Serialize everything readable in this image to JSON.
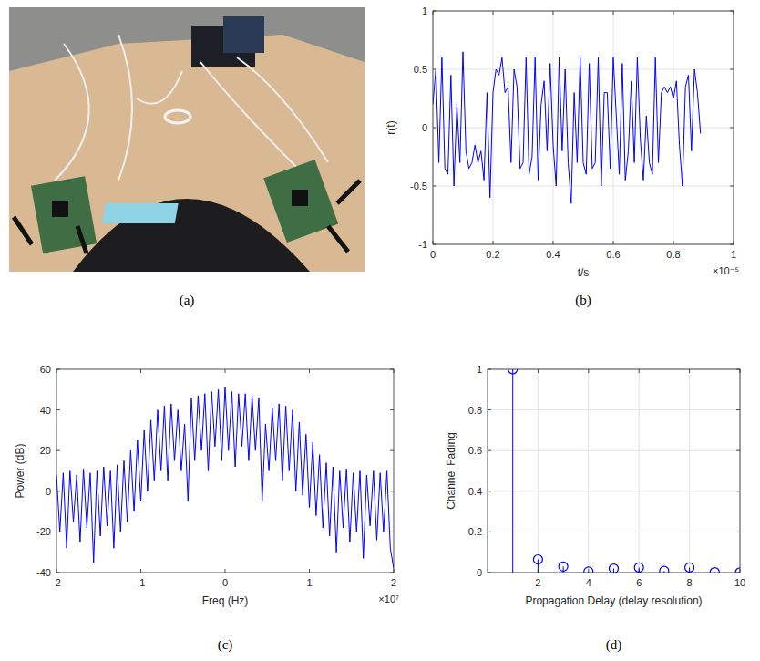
{
  "photo": {
    "caption": "(a)"
  },
  "chart_data": [
    {
      "type": "line",
      "caption": "(b)",
      "x_label": "t/s",
      "y_label": "r(t)",
      "annotations": [
        "×10⁻⁵"
      ],
      "xlim": [
        0,
        1
      ],
      "ylim": [
        -1,
        1
      ],
      "xticks": [
        0,
        0.2,
        0.4,
        0.6,
        0.8,
        1
      ],
      "yticks": [
        -1,
        -0.5,
        0,
        0.5,
        1
      ],
      "grid": true,
      "x": [
        0,
        0.01,
        0.02,
        0.03,
        0.04,
        0.05,
        0.06,
        0.07,
        0.08,
        0.09,
        0.1,
        0.11,
        0.12,
        0.13,
        0.14,
        0.15,
        0.16,
        0.17,
        0.18,
        0.19,
        0.2,
        0.21,
        0.22,
        0.23,
        0.24,
        0.25,
        0.26,
        0.27,
        0.28,
        0.29,
        0.3,
        0.31,
        0.32,
        0.33,
        0.34,
        0.35,
        0.36,
        0.37,
        0.38,
        0.39,
        0.4,
        0.41,
        0.42,
        0.43,
        0.44,
        0.45,
        0.46,
        0.47,
        0.48,
        0.49,
        0.5,
        0.51,
        0.52,
        0.53,
        0.54,
        0.55,
        0.56,
        0.57,
        0.58,
        0.59,
        0.6,
        0.61,
        0.62,
        0.63,
        0.64,
        0.65,
        0.66,
        0.67,
        0.68,
        0.69,
        0.7,
        0.71,
        0.72,
        0.73,
        0.74,
        0.75,
        0.76,
        0.77,
        0.78,
        0.79,
        0.8,
        0.81,
        0.82,
        0.83,
        0.84,
        0.85,
        0.86,
        0.87,
        0.88,
        0.89
      ],
      "series": [
        {
          "color": "#0000ff",
          "values": [
            0.2,
            0.5,
            -0.3,
            0.6,
            -0.35,
            -0.4,
            0.45,
            -0.5,
            0.2,
            -0.3,
            0.65,
            -0.2,
            -0.35,
            -0.3,
            -0.15,
            -0.3,
            -0.2,
            -0.45,
            0.3,
            -0.6,
            0.3,
            0.5,
            0.45,
            0.6,
            0.3,
            0.35,
            -0.3,
            0.5,
            0.35,
            -0.35,
            -0.3,
            0.6,
            -0.4,
            -0.25,
            0.6,
            -0.45,
            0.2,
            0.4,
            -0.2,
            0.55,
            -0.15,
            -0.5,
            0.6,
            -0.2,
            0.5,
            -0.3,
            -0.65,
            0.3,
            -0.3,
            0.6,
            -0.3,
            -0.4,
            0.55,
            -0.35,
            -0.3,
            0.6,
            -0.5,
            0.3,
            0.3,
            -0.35,
            0.6,
            0.1,
            -0.4,
            0.55,
            -0.45,
            -0.2,
            0.4,
            -0.3,
            0.6,
            -0.1,
            -0.45,
            0.1,
            -0.3,
            -0.4,
            0.6,
            -0.3,
            0.3,
            0.35,
            0.3,
            0.35,
            0.25,
            0.4,
            -0.15,
            -0.5,
            0.35,
            0.45,
            -0.2,
            0.5,
            0.3,
            -0.05
          ]
        }
      ]
    },
    {
      "type": "line",
      "caption": "(c)",
      "x_label": "Freq (Hz)",
      "y_label": "Power (dB)",
      "annotations": [
        "×10⁷"
      ],
      "xlim": [
        -2,
        2
      ],
      "ylim": [
        -40,
        60
      ],
      "xticks": [
        -2,
        -1,
        0,
        1,
        2
      ],
      "yticks": [
        -40,
        -20,
        0,
        20,
        40,
        60
      ],
      "grid": false,
      "x": [
        -2,
        -1.96,
        -1.92,
        -1.88,
        -1.84,
        -1.8,
        -1.76,
        -1.72,
        -1.68,
        -1.64,
        -1.6,
        -1.56,
        -1.52,
        -1.48,
        -1.44,
        -1.4,
        -1.36,
        -1.32,
        -1.28,
        -1.24,
        -1.2,
        -1.16,
        -1.12,
        -1.08,
        -1.04,
        -1,
        -0.96,
        -0.92,
        -0.88,
        -0.84,
        -0.8,
        -0.76,
        -0.72,
        -0.68,
        -0.64,
        -0.6,
        -0.56,
        -0.52,
        -0.48,
        -0.44,
        -0.4,
        -0.36,
        -0.32,
        -0.28,
        -0.24,
        -0.2,
        -0.16,
        -0.12,
        -0.08,
        -0.04,
        0,
        0.04,
        0.08,
        0.12,
        0.16,
        0.2,
        0.24,
        0.28,
        0.32,
        0.36,
        0.4,
        0.44,
        0.48,
        0.52,
        0.56,
        0.6,
        0.64,
        0.68,
        0.72,
        0.76,
        0.8,
        0.84,
        0.88,
        0.92,
        0.96,
        1,
        1.04,
        1.08,
        1.12,
        1.16,
        1.2,
        1.24,
        1.28,
        1.32,
        1.36,
        1.4,
        1.44,
        1.48,
        1.52,
        1.56,
        1.6,
        1.64,
        1.68,
        1.72,
        1.76,
        1.8,
        1.84,
        1.88,
        1.92,
        1.96,
        2
      ],
      "series": [
        {
          "color": "#0000ff",
          "values": [
            8,
            -20,
            9,
            -28,
            10,
            -15,
            8,
            -25,
            11,
            -18,
            9,
            -35,
            10,
            -22,
            12,
            -17,
            10,
            -28,
            13,
            -20,
            15,
            -15,
            20,
            -10,
            25,
            -5,
            30,
            0,
            35,
            5,
            40,
            10,
            42,
            5,
            43,
            15,
            40,
            10,
            33,
            -5,
            46,
            15,
            47,
            20,
            48,
            10,
            49,
            22,
            50,
            15,
            51,
            20,
            49,
            12,
            48,
            22,
            48,
            15,
            47,
            20,
            46,
            -5,
            33,
            10,
            41,
            15,
            43,
            5,
            42,
            10,
            40,
            0,
            34,
            -2,
            28,
            -8,
            24,
            -12,
            18,
            -18,
            14,
            -22,
            12,
            -30,
            10,
            -18,
            11,
            -25,
            9,
            -20,
            10,
            -33,
            8,
            -17,
            10,
            -24,
            9,
            -20,
            10,
            -28,
            -38
          ]
        }
      ]
    },
    {
      "type": "stem",
      "caption": "(d)",
      "x_label": "Propagation Delay (delay resolution)",
      "y_label": "Channel Fading",
      "xlim": [
        0,
        10
      ],
      "ylim": [
        0,
        1
      ],
      "xticks": [
        2,
        4,
        6,
        8,
        10
      ],
      "yticks": [
        0,
        0.2,
        0.4,
        0.6,
        0.8,
        1
      ],
      "grid": true,
      "marker": "circle",
      "x": [
        1,
        2,
        3,
        4,
        5,
        6,
        7,
        8,
        9,
        10
      ],
      "series": [
        {
          "color": "#0000ff",
          "values": [
            1,
            0.065,
            0.03,
            0.005,
            0.02,
            0.025,
            0.008,
            0.025,
            0.002,
            0.001
          ]
        }
      ]
    }
  ]
}
